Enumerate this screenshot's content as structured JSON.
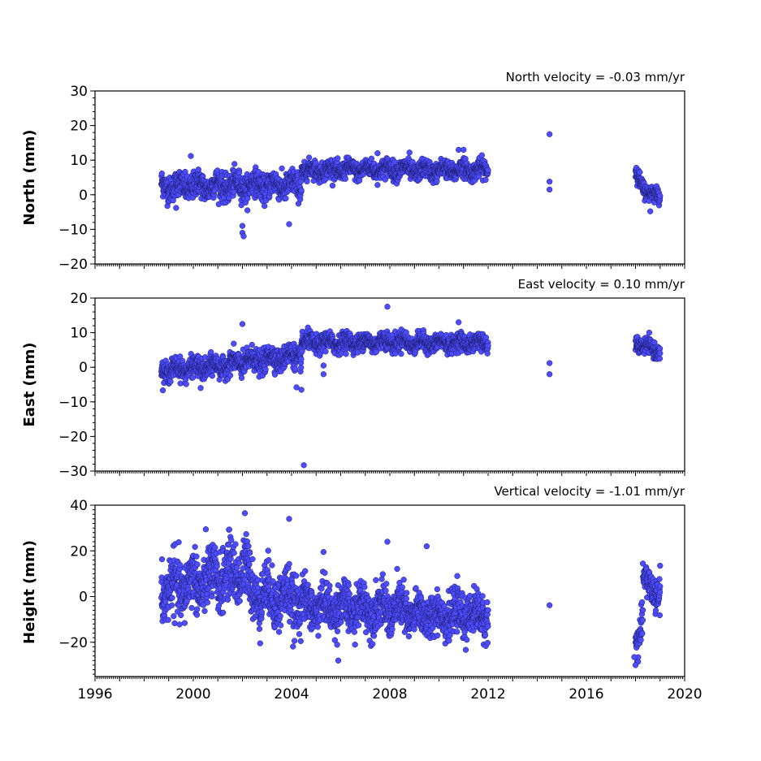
{
  "chart_data": [
    {
      "type": "scatter",
      "title": "North velocity = -0.03 mm/yr",
      "ylabel": "North (mm)",
      "xlim": [
        1996,
        2020
      ],
      "ylim": [
        -20,
        30
      ],
      "yticks": [
        -20,
        -10,
        0,
        10,
        20,
        30
      ],
      "ytick_labels": [
        "−20",
        "−10",
        "0",
        "10",
        "20",
        "30"
      ],
      "xtick_labels": [],
      "point_color": "#4d4dff",
      "segments": [
        {
          "x": [
            1998.7,
            2004.4
          ],
          "center": [
            2.5,
            2.8
          ],
          "spread": 2.3
        },
        {
          "x": [
            2004.4,
            2008.7
          ],
          "center": [
            7.0,
            7.5
          ],
          "spread": 1.6
        },
        {
          "x": [
            2008.7,
            2012.0
          ],
          "center": [
            7.0,
            7.2
          ],
          "spread": 1.6
        },
        {
          "x": [
            2018.0,
            2018.5
          ],
          "center": [
            7.0,
            0.0
          ],
          "spread": 1.4
        },
        {
          "x": [
            2018.5,
            2019.0
          ],
          "center": [
            0.0,
            0.5
          ],
          "spread": 1.3
        }
      ],
      "outliers": [
        [
          2014.5,
          17.5
        ],
        [
          2014.5,
          3.8
        ],
        [
          2014.5,
          1.5
        ],
        [
          2002.0,
          -9.0
        ],
        [
          2002.0,
          -11.0
        ],
        [
          2002.05,
          -12.0
        ],
        [
          2003.9,
          -8.5
        ],
        [
          1999.3,
          -3.8
        ],
        [
          2018.6,
          -4.8
        ],
        [
          1999.9,
          11.2
        ],
        [
          2007.5,
          12.0
        ],
        [
          2008.8,
          12.2
        ],
        [
          2010.8,
          13.0
        ],
        [
          2011.0,
          13.0
        ]
      ]
    },
    {
      "type": "scatter",
      "title": "East velocity = 0.10 mm/yr",
      "ylabel": "East (mm)",
      "xlim": [
        1996,
        2020
      ],
      "ylim": [
        -30,
        20
      ],
      "yticks": [
        -30,
        -20,
        -10,
        0,
        10,
        20
      ],
      "ytick_labels": [
        "−30",
        "−20",
        "−10",
        "0",
        "10",
        "20"
      ],
      "xtick_labels": [],
      "point_color": "#4d4dff",
      "segments": [
        {
          "x": [
            1998.7,
            2001.5
          ],
          "center": [
            -1.0,
            0.5
          ],
          "spread": 1.8
        },
        {
          "x": [
            2001.5,
            2004.4
          ],
          "center": [
            1.0,
            3.5
          ],
          "spread": 2.0
        },
        {
          "x": [
            2004.4,
            2008.7
          ],
          "center": [
            7.0,
            7.5
          ],
          "spread": 1.6
        },
        {
          "x": [
            2008.7,
            2012.0
          ],
          "center": [
            7.0,
            7.0
          ],
          "spread": 1.5
        },
        {
          "x": [
            2018.0,
            2019.0
          ],
          "center": [
            7.0,
            4.5
          ],
          "spread": 1.3
        }
      ],
      "outliers": [
        [
          2014.5,
          1.2
        ],
        [
          2014.5,
          -2.0
        ],
        [
          2004.5,
          -28.3
        ],
        [
          2004.4,
          -6.5
        ],
        [
          2004.2,
          -5.8
        ],
        [
          2002.0,
          12.5
        ],
        [
          2007.9,
          17.5
        ],
        [
          2010.8,
          13.0
        ],
        [
          2005.3,
          -2.0
        ],
        [
          2005.3,
          0.5
        ],
        [
          2000.3,
          -6.0
        ]
      ]
    },
    {
      "type": "scatter",
      "title": "Vertical velocity = -1.01 mm/yr",
      "ylabel": "Height (mm)",
      "xlim": [
        1996,
        2020
      ],
      "ylim": [
        -35,
        40
      ],
      "yticks": [
        -20,
        0,
        20,
        40
      ],
      "ytick_labels": [
        "−20",
        "0",
        "20",
        "40"
      ],
      "xticks": [
        1996,
        2000,
        2004,
        2008,
        2012,
        2016,
        2020
      ],
      "xtick_labels": [
        "1996",
        "2000",
        "2004",
        "2008",
        "2012",
        "2016",
        "2020"
      ],
      "point_color": "#4d4dff",
      "segments": [
        {
          "x": [
            1998.7,
            2002.3
          ],
          "center": [
            2.0,
            12.0
          ],
          "spread": 8.0
        },
        {
          "x": [
            2002.3,
            2004.4
          ],
          "center": [
            2.0,
            -2.0
          ],
          "spread": 7.5
        },
        {
          "x": [
            2004.4,
            2008.7
          ],
          "center": [
            -4.0,
            -6.0
          ],
          "spread": 6.0
        },
        {
          "x": [
            2008.7,
            2012.0
          ],
          "center": [
            -8.0,
            -8.0
          ],
          "spread": 5.5
        },
        {
          "x": [
            2018.0,
            2018.3
          ],
          "center": [
            -18.0,
            -14.0
          ],
          "spread": 5.0
        },
        {
          "x": [
            2018.3,
            2019.0
          ],
          "center": [
            8.0,
            0.0
          ],
          "spread": 4.5
        }
      ],
      "outliers": [
        [
          2014.5,
          -3.8
        ],
        [
          2002.1,
          36.5
        ],
        [
          2003.9,
          34.0
        ],
        [
          2018.0,
          -30.0
        ],
        [
          2017.95,
          -26.5
        ],
        [
          2007.9,
          24.0
        ],
        [
          2009.5,
          22.0
        ],
        [
          2005.9,
          -28.0
        ],
        [
          2005.3,
          19.5
        ],
        [
          2019.0,
          13.5
        ]
      ]
    }
  ]
}
